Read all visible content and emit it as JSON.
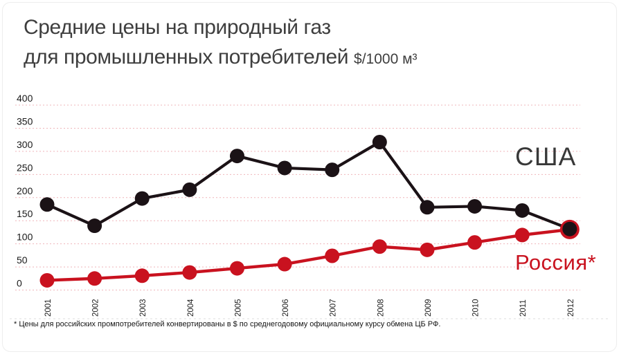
{
  "title": {
    "line1": "Средние цены на природный газ",
    "line2": "для промышленных потребителей",
    "unit": "$/1000 м³"
  },
  "footnote": "* Цены для российских промпотребителей конвертированы в $ по среднегодовому официальному курсу обмена ЦБ РФ.",
  "colors": {
    "usa": "#1b1216",
    "russia": "#c9121f",
    "grid": "#efb4b9",
    "axis_text": "#1a1a1a",
    "title_text": "#3e3e3e"
  },
  "chart_data": {
    "type": "line",
    "title": "Средние цены на природный газ для промышленных потребителей, $/1000 м³",
    "categories": [
      "2001",
      "2002",
      "2003",
      "2004",
      "2005",
      "2006",
      "2007",
      "2008",
      "2009",
      "2010",
      "2011",
      "2012"
    ],
    "series": [
      {
        "name": "США",
        "color": "#1b1216",
        "values": [
          185,
          139,
          198,
          217,
          290,
          264,
          260,
          320,
          179,
          181,
          172,
          132
        ]
      },
      {
        "name": "Россия*",
        "color": "#c9121f",
        "values": [
          21,
          25,
          31,
          38,
          47,
          56,
          74,
          94,
          87,
          103,
          119,
          131
        ]
      }
    ],
    "xlabel": "",
    "ylabel": "$/1000 м³",
    "ylim": [
      0,
      400
    ],
    "yticks": [
      400,
      350,
      300,
      250,
      200,
      150,
      100,
      50,
      0
    ],
    "grid": true,
    "gridline_style": "dotted-pink",
    "legend_position": "inline-right-labels"
  }
}
